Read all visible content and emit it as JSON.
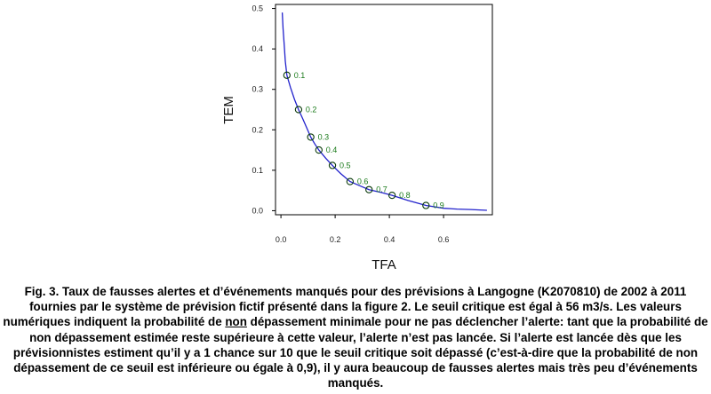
{
  "chart_data": {
    "type": "line",
    "xlabel": "TFA",
    "ylabel": "TEM",
    "xlim": [
      -0.02,
      0.78
    ],
    "ylim": [
      -0.01,
      0.51
    ],
    "x_ticks": [
      "0.0",
      "0.2",
      "0.4",
      "0.6"
    ],
    "y_ticks": [
      "0.0",
      "0.1",
      "0.2",
      "0.3",
      "0.4",
      "0.5"
    ],
    "line_color": "#2222cc",
    "marker_color": "#1a7a1a",
    "curve": [
      {
        "x": 0.005,
        "y": 0.49
      },
      {
        "x": 0.008,
        "y": 0.45
      },
      {
        "x": 0.012,
        "y": 0.41
      },
      {
        "x": 0.016,
        "y": 0.37
      },
      {
        "x": 0.022,
        "y": 0.335
      },
      {
        "x": 0.035,
        "y": 0.305
      },
      {
        "x": 0.05,
        "y": 0.275
      },
      {
        "x": 0.065,
        "y": 0.25
      },
      {
        "x": 0.08,
        "y": 0.228
      },
      {
        "x": 0.095,
        "y": 0.205
      },
      {
        "x": 0.11,
        "y": 0.182
      },
      {
        "x": 0.125,
        "y": 0.165
      },
      {
        "x": 0.14,
        "y": 0.15
      },
      {
        "x": 0.165,
        "y": 0.13
      },
      {
        "x": 0.19,
        "y": 0.112
      },
      {
        "x": 0.22,
        "y": 0.092
      },
      {
        "x": 0.255,
        "y": 0.072
      },
      {
        "x": 0.29,
        "y": 0.062
      },
      {
        "x": 0.325,
        "y": 0.052
      },
      {
        "x": 0.37,
        "y": 0.045
      },
      {
        "x": 0.41,
        "y": 0.038
      },
      {
        "x": 0.47,
        "y": 0.025
      },
      {
        "x": 0.535,
        "y": 0.013
      },
      {
        "x": 0.6,
        "y": 0.006
      },
      {
        "x": 0.65,
        "y": 0.004
      },
      {
        "x": 0.7,
        "y": 0.003
      },
      {
        "x": 0.76,
        "y": 0.001
      }
    ],
    "points": [
      {
        "label": "0.1",
        "x": 0.022,
        "y": 0.335
      },
      {
        "label": "0.2",
        "x": 0.065,
        "y": 0.25
      },
      {
        "label": "0.3",
        "x": 0.11,
        "y": 0.182
      },
      {
        "label": "0.4",
        "x": 0.14,
        "y": 0.15
      },
      {
        "label": "0.5",
        "x": 0.19,
        "y": 0.112
      },
      {
        "label": "0.6",
        "x": 0.255,
        "y": 0.072
      },
      {
        "label": "0.7",
        "x": 0.325,
        "y": 0.052
      },
      {
        "label": "0.8",
        "x": 0.41,
        "y": 0.038
      },
      {
        "label": "0.9",
        "x": 0.535,
        "y": 0.013
      }
    ]
  },
  "caption": {
    "part1": "Fig. 3. Taux de fausses alertes et d’événements manqués pour des prévisions à Langogne (K2070810) de 2002 à 2011 fournies par le système de prévision fictif présenté dans la figure 2. Le seuil critique est égal à 56 m3/s. Les valeurs numériques indiquent la probabilité de ",
    "underlined": "non",
    "part2": " dépassement minimale pour ne pas déclencher l’alerte: tant que la probabilité de non dépassement estimée reste supérieure à cette valeur, l’alerte n’est pas lancée. Si l’alerte est lancée dès que les prévisionnistes estiment qu’il y a 1 chance sur 10 que le seuil critique soit dépassé (c’est-à-dire que la probabilité de non dépassement de ce seuil est inférieure ou égale à 0,9), il y aura beaucoup de fausses alertes mais très peu d’événements manqués."
  }
}
